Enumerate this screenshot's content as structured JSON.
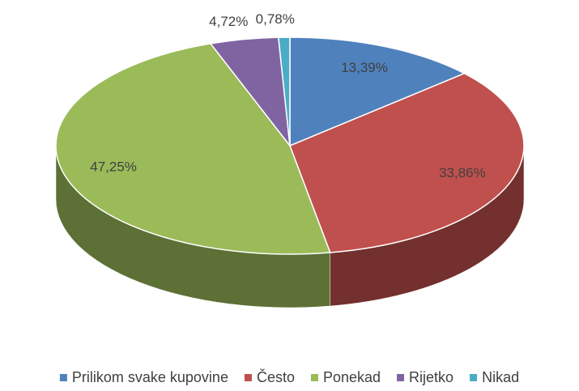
{
  "chart_data": {
    "type": "pie",
    "categories": [
      "Prilikom svake kupovine",
      "Često",
      "Ponekad",
      "Rijetko",
      "Nikad"
    ],
    "values": [
      13.39,
      33.86,
      47.25,
      4.72,
      0.78
    ],
    "value_labels": [
      "13,39%",
      "33,86%",
      "47,25%",
      "4,72%",
      "0,78%"
    ],
    "colors": [
      "#4f81bd",
      "#c0504d",
      "#9bbb59",
      "#8064a2",
      "#4bacc6"
    ],
    "legend": "bottom"
  }
}
